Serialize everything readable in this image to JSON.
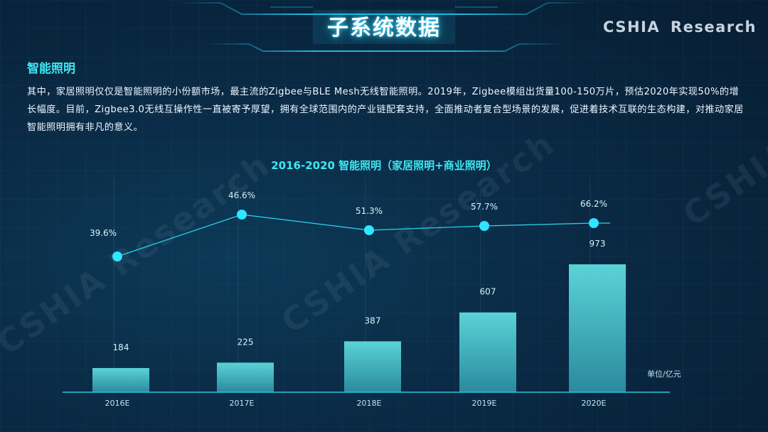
{
  "page": {
    "title": "子系统数据",
    "brand": "CSHIA  Research",
    "section_title": "智能照明",
    "body_text": "其中，家居照明仅仅是智能照明的小份额市场，最主流的Zigbee与BLE Mesh无线智能照明。2019年，Zigbee模组出货量100-150万片，预估2020年实现50%的增长幅度。目前，Zigbee3.0无线互操作性一直被寄予厚望，拥有全球范围内的产业链配套支持，全面推动者复合型场景的发展，促进着技术互联的生态构建，对推动家居智能照明拥有非凡的意义。",
    "watermarks": [
      "CSHIA Research",
      "CSHIA Research",
      "CSHIA"
    ]
  },
  "colors": {
    "accent": "#3fe6f0",
    "bar_top": "#5ad3d6",
    "bar_bottom": "#2a8a9e",
    "line": "#29d8f0",
    "background": "#0a2a45"
  },
  "chart_data": {
    "type": "bar+line",
    "title": "2016-2020 智能照明（家居照明+商业照明）",
    "categories": [
      "2016E",
      "2017E",
      "2018E",
      "2019E",
      "2020E"
    ],
    "series": [
      {
        "type": "bar",
        "values": [
          184,
          225,
          387,
          607,
          973
        ],
        "value_labels": [
          "184",
          "225",
          "387",
          "607",
          "973"
        ]
      },
      {
        "type": "line",
        "values": [
          39.6,
          46.6,
          51.3,
          57.7,
          66.2
        ],
        "value_labels": [
          "39.6%",
          "46.6%",
          "51.3%",
          "57.7%",
          "66.2%"
        ]
      }
    ],
    "unit_label": "单位/亿元",
    "grid": false,
    "legend": "none"
  }
}
